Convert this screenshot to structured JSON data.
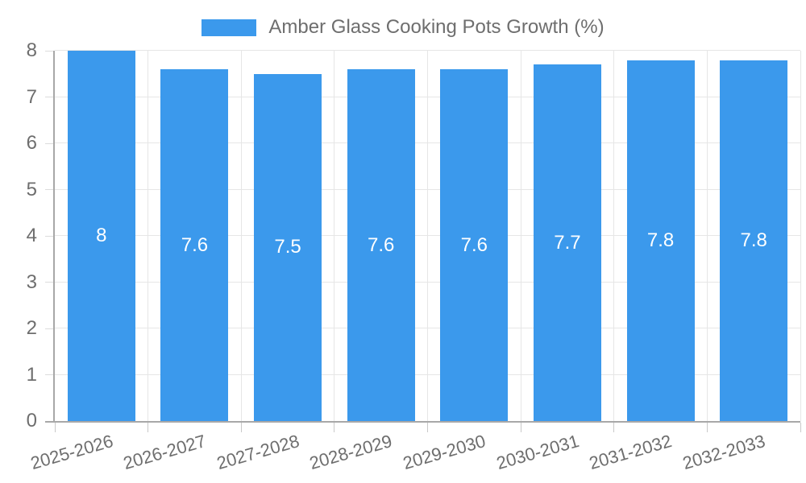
{
  "chart_data": {
    "type": "bar",
    "legend_label": "Amber Glass Cooking Pots Growth (%)",
    "legend_position": "top",
    "categories": [
      "2025-2026",
      "2026-2027",
      "2027-2028",
      "2028-2029",
      "2029-2030",
      "2030-2031",
      "2031-2032",
      "2032-2033"
    ],
    "values": [
      8,
      7.6,
      7.5,
      7.6,
      7.6,
      7.7,
      7.8,
      7.8
    ],
    "value_labels": [
      "8",
      "7.6",
      "7.5",
      "7.6",
      "7.6",
      "7.7",
      "7.8",
      "7.8"
    ],
    "ylim": [
      0,
      8
    ],
    "yticks": [
      "0",
      "1",
      "2",
      "3",
      "4",
      "5",
      "6",
      "7",
      "8"
    ],
    "grid": true,
    "x_tick_rotation_deg": -16,
    "colors": {
      "bar": "#3B99EC",
      "grid": "#E6E6E6",
      "y_tick_mark": "#DCDCDC",
      "x_tick_mark": "#C9C9C9",
      "axis_border": "#A8A8A8",
      "tick_label": "#6E6E6E",
      "value_label": "#FFFFFF"
    }
  }
}
